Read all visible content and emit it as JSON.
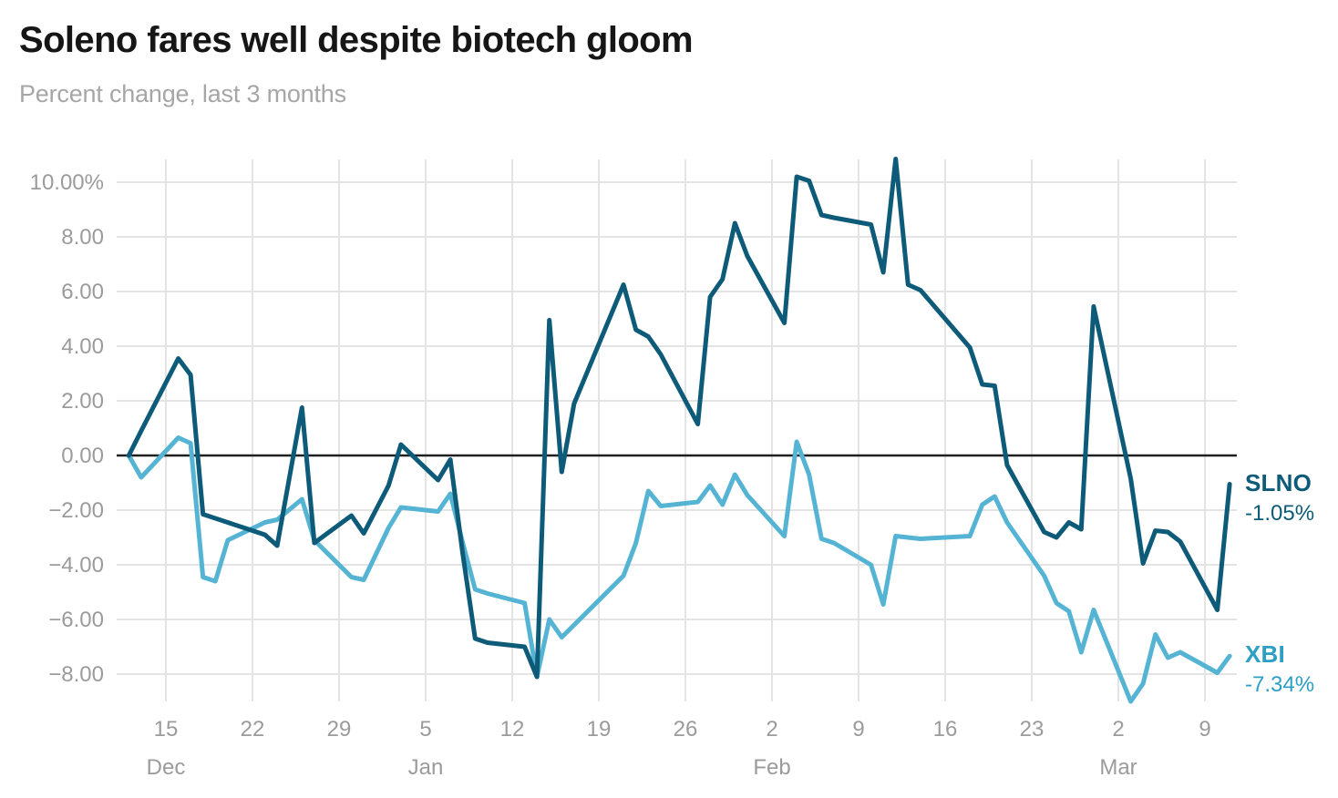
{
  "header": {
    "title": "Soleno fares well despite biotech gloom",
    "subtitle": "Percent change, last 3 months"
  },
  "colors": {
    "slno_line": "#0d5b78",
    "xbi_line": "#55b4d3",
    "xbi_label_text": "#2d9fc4",
    "grid": "#e4e4e4",
    "zero_line": "#1f1f1f",
    "axis_text": "#9b9b9b",
    "title_text": "#161616",
    "subtitle_text": "#a6a6a6",
    "background": "#ffffff"
  },
  "chart_data": {
    "type": "line",
    "title": "Soleno fares well despite biotech gloom",
    "subtitle": "Percent change, last 3 months",
    "xlabel": "",
    "ylabel": "",
    "ylim": [
      -9.6,
      11.2
    ],
    "grid": true,
    "zero_baseline": true,
    "legend_position": "right-end-labels",
    "y_axis": {
      "ticks": [
        {
          "value": 10,
          "label": "10.00%"
        },
        {
          "value": 8,
          "label": "8.00"
        },
        {
          "value": 6,
          "label": "6.00"
        },
        {
          "value": 4,
          "label": "4.00"
        },
        {
          "value": 2,
          "label": "2.00"
        },
        {
          "value": 0,
          "label": "0.00"
        },
        {
          "value": -2,
          "label": "−2.00"
        },
        {
          "value": -4,
          "label": "−4.00"
        },
        {
          "value": -6,
          "label": "−6.00"
        },
        {
          "value": -8,
          "label": "−8.00"
        }
      ]
    },
    "x_axis": {
      "ticks": [
        {
          "date": "Dec 15",
          "label": "15",
          "month": "Dec"
        },
        {
          "date": "Dec 22",
          "label": "22"
        },
        {
          "date": "Dec 29",
          "label": "29"
        },
        {
          "date": "Jan 5",
          "label": "5",
          "month": "Jan"
        },
        {
          "date": "Jan 12",
          "label": "12"
        },
        {
          "date": "Jan 19",
          "label": "19"
        },
        {
          "date": "Jan 26",
          "label": "26"
        },
        {
          "date": "Feb 2",
          "label": "2",
          "month": "Feb"
        },
        {
          "date": "Feb 9",
          "label": "9"
        },
        {
          "date": "Feb 16",
          "label": "16"
        },
        {
          "date": "Feb 23",
          "label": "23"
        },
        {
          "date": "Mar 2",
          "label": "2",
          "month": "Mar"
        },
        {
          "date": "Mar 9",
          "label": "9"
        }
      ]
    },
    "series": [
      {
        "name": "SLNO",
        "end_label": "SLNO",
        "end_value": "-1.05%",
        "color": "#0d5b78",
        "points": [
          [
            "Dec 12",
            0.0
          ],
          [
            "Dec 13",
            0.9
          ],
          [
            "Dec 16",
            3.55
          ],
          [
            "Dec 17",
            2.95
          ],
          [
            "Dec 18",
            -2.15
          ],
          [
            "Dec 19",
            -2.3
          ],
          [
            "Dec 20",
            -2.45
          ],
          [
            "Dec 23",
            -2.9
          ],
          [
            "Dec 24",
            -3.3
          ],
          [
            "Dec 26",
            1.75
          ],
          [
            "Dec 27",
            -3.2
          ],
          [
            "Dec 30",
            -2.2
          ],
          [
            "Dec 31",
            -2.85
          ],
          [
            "Jan 2",
            -1.1
          ],
          [
            "Jan 3",
            0.4
          ],
          [
            "Jan 6",
            -0.9
          ],
          [
            "Jan 7",
            -0.15
          ],
          [
            "Jan 8",
            -3.6
          ],
          [
            "Jan 9",
            -6.7
          ],
          [
            "Jan 10",
            -6.85
          ],
          [
            "Jan 13",
            -7.0
          ],
          [
            "Jan 14",
            -8.1
          ],
          [
            "Jan 15",
            4.95
          ],
          [
            "Jan 16",
            -0.6
          ],
          [
            "Jan 17",
            1.9
          ],
          [
            "Jan 21",
            6.25
          ],
          [
            "Jan 22",
            4.6
          ],
          [
            "Jan 23",
            4.35
          ],
          [
            "Jan 24",
            3.7
          ],
          [
            "Jan 27",
            1.15
          ],
          [
            "Jan 28",
            5.8
          ],
          [
            "Jan 29",
            6.45
          ],
          [
            "Jan 30",
            8.5
          ],
          [
            "Jan 31",
            7.3
          ],
          [
            "Feb 3",
            4.85
          ],
          [
            "Feb 4",
            10.2
          ],
          [
            "Feb 5",
            10.05
          ],
          [
            "Feb 6",
            8.8
          ],
          [
            "Feb 7",
            8.7
          ],
          [
            "Feb 10",
            8.45
          ],
          [
            "Feb 11",
            6.7
          ],
          [
            "Feb 12",
            10.85
          ],
          [
            "Feb 13",
            6.25
          ],
          [
            "Feb 14",
            6.05
          ],
          [
            "Feb 18",
            3.95
          ],
          [
            "Feb 19",
            2.6
          ],
          [
            "Feb 20",
            2.55
          ],
          [
            "Feb 21",
            -0.35
          ],
          [
            "Feb 24",
            -2.8
          ],
          [
            "Feb 25",
            -3.0
          ],
          [
            "Feb 26",
            -2.45
          ],
          [
            "Feb 27",
            -2.7
          ],
          [
            "Feb 28",
            5.45
          ],
          [
            "Mar 3",
            -0.85
          ],
          [
            "Mar 4",
            -3.95
          ],
          [
            "Mar 5",
            -2.75
          ],
          [
            "Mar 6",
            -2.8
          ],
          [
            "Mar 7",
            -3.15
          ],
          [
            "Mar 10",
            -5.65
          ],
          [
            "Mar 11",
            -1.05
          ]
        ]
      },
      {
        "name": "XBI",
        "end_label": "XBI",
        "end_value": "-7.34%",
        "color": "#55b4d3",
        "points": [
          [
            "Dec 12",
            0.0
          ],
          [
            "Dec 13",
            -0.8
          ],
          [
            "Dec 16",
            0.65
          ],
          [
            "Dec 17",
            0.45
          ],
          [
            "Dec 18",
            -4.45
          ],
          [
            "Dec 19",
            -4.6
          ],
          [
            "Dec 20",
            -3.1
          ],
          [
            "Dec 23",
            -2.45
          ],
          [
            "Dec 24",
            -2.35
          ],
          [
            "Dec 26",
            -1.6
          ],
          [
            "Dec 27",
            -3.1
          ],
          [
            "Dec 30",
            -4.45
          ],
          [
            "Dec 31",
            -4.55
          ],
          [
            "Jan 2",
            -2.65
          ],
          [
            "Jan 3",
            -1.9
          ],
          [
            "Jan 6",
            -2.05
          ],
          [
            "Jan 7",
            -1.4
          ],
          [
            "Jan 8",
            -3.2
          ],
          [
            "Jan 9",
            -4.9
          ],
          [
            "Jan 10",
            -5.05
          ],
          [
            "Jan 13",
            -5.4
          ],
          [
            "Jan 14",
            -8.1
          ],
          [
            "Jan 15",
            -6.0
          ],
          [
            "Jan 16",
            -6.65
          ],
          [
            "Jan 17",
            -6.2
          ],
          [
            "Jan 21",
            -4.4
          ],
          [
            "Jan 22",
            -3.2
          ],
          [
            "Jan 23",
            -1.3
          ],
          [
            "Jan 24",
            -1.85
          ],
          [
            "Jan 27",
            -1.7
          ],
          [
            "Jan 28",
            -1.1
          ],
          [
            "Jan 29",
            -1.8
          ],
          [
            "Jan 30",
            -0.7
          ],
          [
            "Jan 31",
            -1.45
          ],
          [
            "Feb 3",
            -2.95
          ],
          [
            "Feb 4",
            0.5
          ],
          [
            "Feb 5",
            -0.7
          ],
          [
            "Feb 6",
            -3.05
          ],
          [
            "Feb 7",
            -3.2
          ],
          [
            "Feb 10",
            -4.0
          ],
          [
            "Feb 11",
            -5.45
          ],
          [
            "Feb 12",
            -2.95
          ],
          [
            "Feb 13",
            -3.0
          ],
          [
            "Feb 14",
            -3.05
          ],
          [
            "Feb 18",
            -2.95
          ],
          [
            "Feb 19",
            -1.8
          ],
          [
            "Feb 20",
            -1.5
          ],
          [
            "Feb 21",
            -2.45
          ],
          [
            "Feb 24",
            -4.4
          ],
          [
            "Feb 25",
            -5.4
          ],
          [
            "Feb 26",
            -5.7
          ],
          [
            "Feb 27",
            -7.2
          ],
          [
            "Feb 28",
            -5.65
          ],
          [
            "Mar 3",
            -9.0
          ],
          [
            "Mar 4",
            -8.35
          ],
          [
            "Mar 5",
            -6.55
          ],
          [
            "Mar 6",
            -7.4
          ],
          [
            "Mar 7",
            -7.2
          ],
          [
            "Mar 10",
            -7.95
          ],
          [
            "Mar 11",
            -7.34
          ]
        ]
      }
    ]
  }
}
